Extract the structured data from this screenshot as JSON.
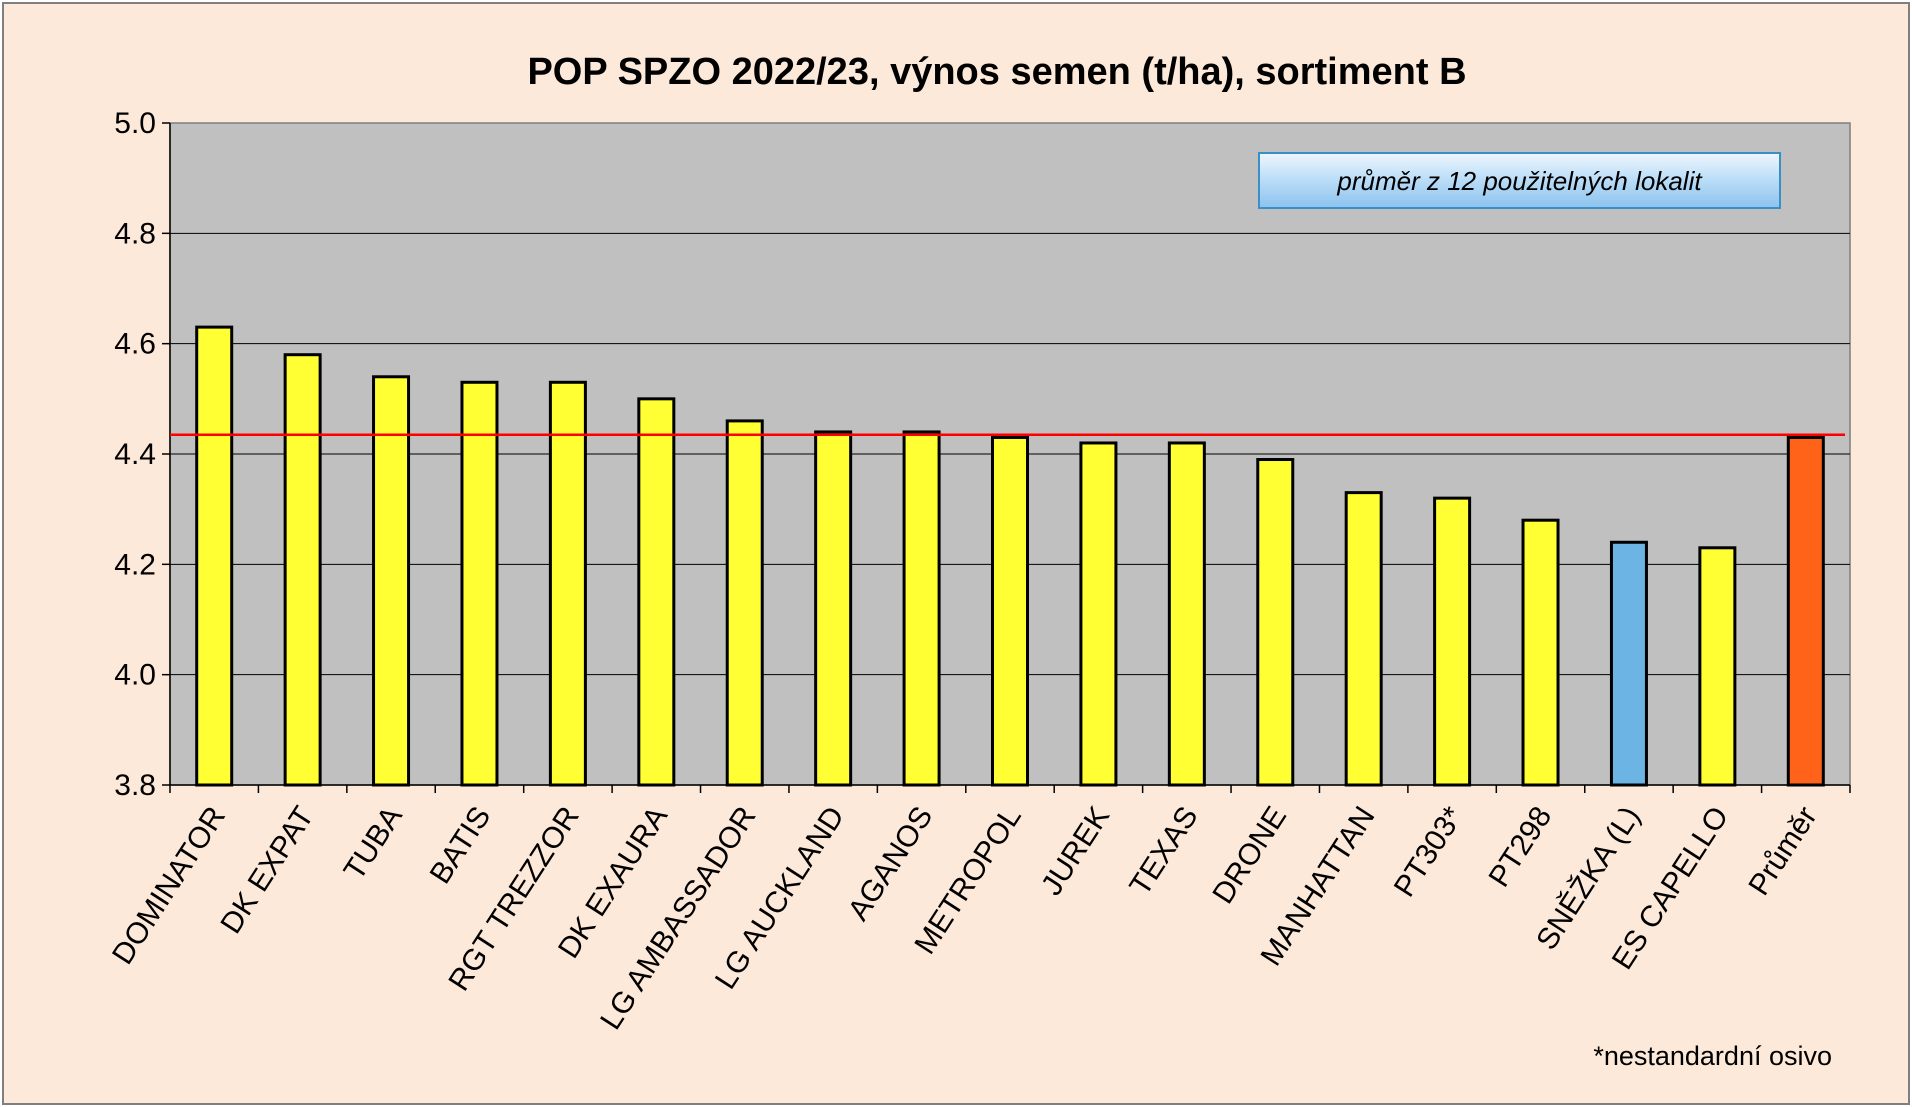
{
  "chart_data": {
    "type": "bar",
    "title": "POP SPZO 2022/23, výnos semen (t/ha), sortiment B",
    "xlabel": "",
    "ylabel": "",
    "ylim": [
      3.8,
      5.0
    ],
    "yticks": [
      "3.8",
      "4.0",
      "4.2",
      "4.4",
      "4.6",
      "4.8",
      "5.0"
    ],
    "grid": true,
    "categories": [
      "DOMINATOR",
      "DK EXPAT",
      "TUBA",
      "BATIS",
      "RGT TREZZOR",
      "DK EXAURA",
      "LG AMBASSADOR",
      "LG AUCKLAND",
      "AGANOS",
      "METROPOL",
      "JUREK",
      "TEXAS",
      "DRONE",
      "MANHATTAN",
      "PT303*",
      "PT298",
      "SNĚŽKA (L)",
      "ES CAPELLO",
      "Průměr"
    ],
    "values": [
      4.63,
      4.58,
      4.54,
      4.53,
      4.53,
      4.5,
      4.46,
      4.44,
      4.44,
      4.43,
      4.42,
      4.42,
      4.39,
      4.33,
      4.32,
      4.28,
      4.24,
      4.23,
      4.43
    ],
    "bar_colors": [
      "#ffff33",
      "#ffff33",
      "#ffff33",
      "#ffff33",
      "#ffff33",
      "#ffff33",
      "#ffff33",
      "#ffff33",
      "#ffff33",
      "#ffff33",
      "#ffff33",
      "#ffff33",
      "#ffff33",
      "#ffff33",
      "#ffff33",
      "#ffff33",
      "#6cb4e4",
      "#ffff33",
      "#ff6219"
    ],
    "reference_line": {
      "value": 4.435,
      "color": "#ff0000"
    },
    "annotation": "průměr z 12 použitelných lokalit",
    "footnote": "*nestandardní osivo",
    "colors": {
      "plot_background": "#c0c0c0",
      "chart_background": "#fde9d9",
      "grid": "#000000"
    }
  }
}
